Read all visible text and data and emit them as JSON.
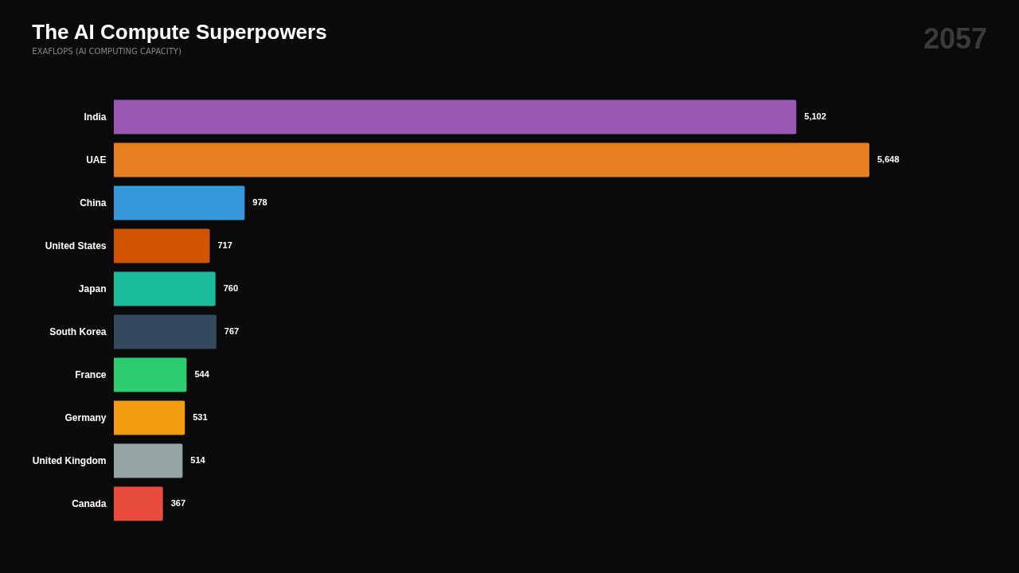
{
  "chart_data": {
    "type": "bar",
    "orientation": "horizontal",
    "title": "The AI Compute Superpowers",
    "subtitle": "EXAFLOPS (AI COMPUTING CAPACITY)",
    "categories": [
      "India",
      "UAE",
      "China",
      "United States",
      "Japan",
      "South Korea",
      "France",
      "Germany",
      "United Kingdom",
      "Canada"
    ],
    "values": [
      5102,
      5648,
      978,
      717,
      760,
      767,
      544,
      531,
      514,
      367
    ],
    "value_labels": [
      "5,102",
      "5,648",
      "978",
      "717",
      "760",
      "767",
      "544",
      "531",
      "514",
      "367"
    ],
    "colors": [
      "#9b59b6",
      "#e67e22",
      "#3498db",
      "#d35400",
      "#1abc9c",
      "#34495e",
      "#2ecc71",
      "#f39c12",
      "#95a5a6",
      "#e74c3c"
    ],
    "annotations": [
      "2057"
    ]
  }
}
